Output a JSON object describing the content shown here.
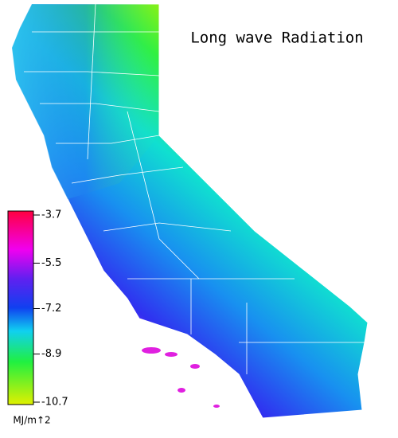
{
  "title": "Long wave Radiation",
  "colorbar": {
    "lim": [
      -10.7,
      -3.7
    ],
    "ticks": [
      -3.7,
      -5.5,
      -7.2,
      -8.9,
      -10.7
    ],
    "label": "MJ/m↑2"
  }
}
